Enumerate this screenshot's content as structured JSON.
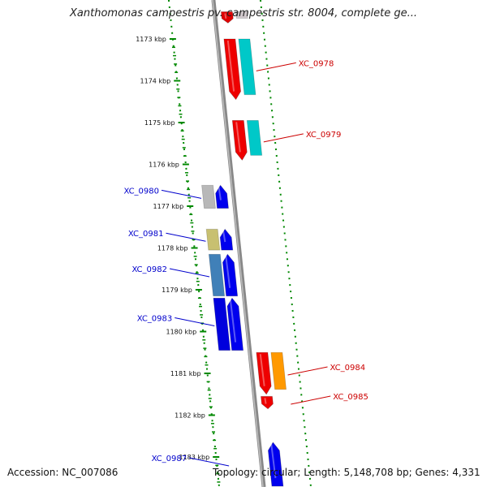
{
  "title": "Xanthomonas campestris pv. campestris str. 8004, complete ge...",
  "accession_text": "Accession: NC_007086",
  "summary_text": "Topology: circular; Length: 5,148,708 bp; Genes: 4,331",
  "colors": {
    "forward_label": "#cc0000",
    "reverse_label": "#0000cc",
    "backbone": "#888888",
    "tick": "#008800"
  },
  "ruler": {
    "unit": "kbp",
    "ticks": [
      {
        "label": "1173 kbp",
        "kbp": 1173
      },
      {
        "label": "1174 kbp",
        "kbp": 1174
      },
      {
        "label": "1175 kbp",
        "kbp": 1175
      },
      {
        "label": "1176 kbp",
        "kbp": 1176
      },
      {
        "label": "1177 kbp",
        "kbp": 1177
      },
      {
        "label": "1178 kbp",
        "kbp": 1178
      },
      {
        "label": "1179 kbp",
        "kbp": 1179
      },
      {
        "label": "1180 kbp",
        "kbp": 1180
      },
      {
        "label": "1181 kbp",
        "kbp": 1181
      },
      {
        "label": "1182 kbp",
        "kbp": 1182
      },
      {
        "label": "1183 kbp",
        "kbp": 1183
      }
    ]
  },
  "genes": [
    {
      "label": "",
      "strand": "forward",
      "start_kbp": 1172.35,
      "end_kbp": 1172.62,
      "cds_color": "#e00000",
      "feature_color": "#d0c8cc"
    },
    {
      "label": "XC_0978",
      "strand": "forward",
      "start_kbp": 1173.0,
      "end_kbp": 1174.45,
      "cds_color": "#ee0000",
      "feature_color": "#00c8c8"
    },
    {
      "label": "XC_0979",
      "strand": "forward",
      "start_kbp": 1174.95,
      "end_kbp": 1175.9,
      "cds_color": "#ee0000",
      "feature_color": "#00c8c8"
    },
    {
      "label": "XC_0980",
      "strand": "reverse",
      "start_kbp": 1176.5,
      "end_kbp": 1177.05,
      "cds_color": "#0000ee",
      "feature_color": "#b8b8b8"
    },
    {
      "label": "XC_0981",
      "strand": "reverse",
      "start_kbp": 1177.55,
      "end_kbp": 1178.05,
      "cds_color": "#0000ee",
      "feature_color": "#c8c070"
    },
    {
      "label": "XC_0982",
      "strand": "reverse",
      "start_kbp": 1178.15,
      "end_kbp": 1179.15,
      "cds_color": "#0000ee",
      "feature_color": "#4080b8"
    },
    {
      "label": "XC_0983",
      "strand": "reverse",
      "start_kbp": 1179.2,
      "end_kbp": 1180.45,
      "cds_color": "#0000ee",
      "feature_color": "#0000dd"
    },
    {
      "label": "XC_0984",
      "strand": "forward",
      "start_kbp": 1180.5,
      "end_kbp": 1181.5,
      "cds_color": "#ee0000",
      "feature_color": "#ff9900"
    },
    {
      "label": "XC_0985",
      "strand": "forward",
      "start_kbp": 1181.55,
      "end_kbp": 1181.85,
      "cds_color": "#ee0000",
      "feature_color": null
    },
    {
      "label": "XC_0987",
      "strand": "reverse",
      "start_kbp": 1182.65,
      "end_kbp": 1183.7,
      "cds_color": "#0000ee",
      "feature_color": null
    }
  ]
}
